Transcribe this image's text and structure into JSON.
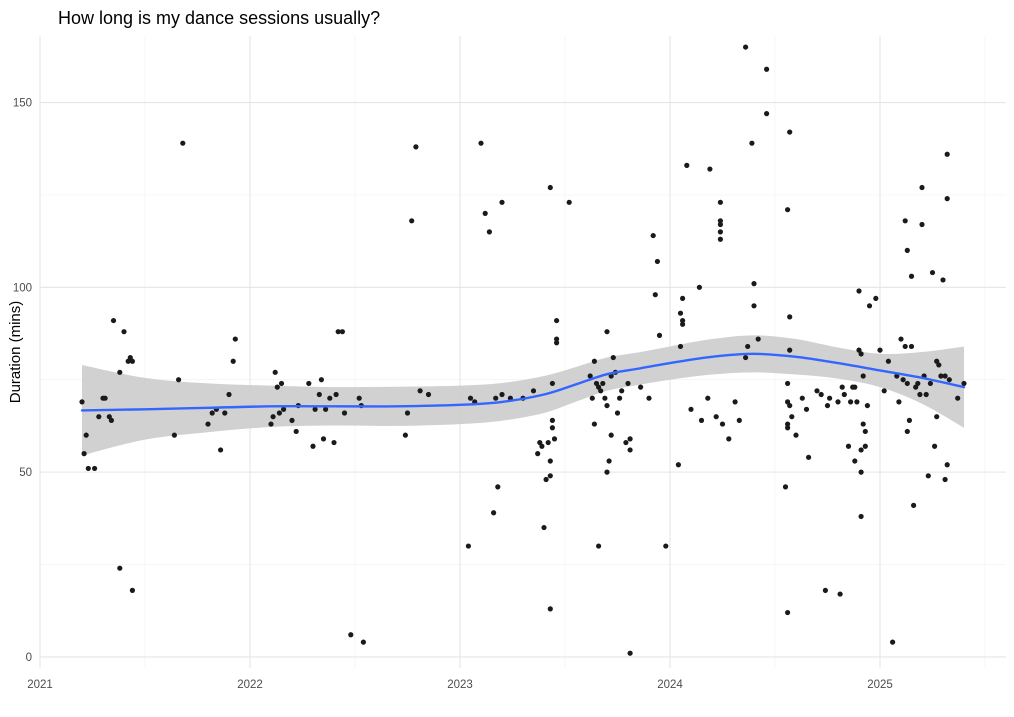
{
  "chart_data": {
    "type": "scatter",
    "title": "How long is my dance sessions usually?",
    "xlabel": "",
    "ylabel": "Duration (mins)",
    "xlim": [
      2021.0,
      2025.6
    ],
    "ylim": [
      -3,
      168
    ],
    "x_ticks": [
      2021,
      2022,
      2023,
      2024,
      2025
    ],
    "x_tick_labels": [
      "2021",
      "2022",
      "2023",
      "2024",
      "2025"
    ],
    "y_ticks": [
      0,
      50,
      100,
      150
    ],
    "y_tick_labels": [
      "0",
      "50",
      "100",
      "150"
    ],
    "grid": true,
    "colors": {
      "points": "#1a1a1a",
      "smooth_line": "#3366ff",
      "ribbon": "#cccccc",
      "grid": "#ebebeb"
    },
    "points": [
      {
        "x": 2021.2,
        "y": 69
      },
      {
        "x": 2021.21,
        "y": 55
      },
      {
        "x": 2021.22,
        "y": 60
      },
      {
        "x": 2021.23,
        "y": 51
      },
      {
        "x": 2021.26,
        "y": 51
      },
      {
        "x": 2021.28,
        "y": 65
      },
      {
        "x": 2021.3,
        "y": 70
      },
      {
        "x": 2021.31,
        "y": 70
      },
      {
        "x": 2021.33,
        "y": 65
      },
      {
        "x": 2021.34,
        "y": 64
      },
      {
        "x": 2021.35,
        "y": 91
      },
      {
        "x": 2021.38,
        "y": 24
      },
      {
        "x": 2021.38,
        "y": 77
      },
      {
        "x": 2021.4,
        "y": 88
      },
      {
        "x": 2021.42,
        "y": 80
      },
      {
        "x": 2021.43,
        "y": 81
      },
      {
        "x": 2021.44,
        "y": 80
      },
      {
        "x": 2021.44,
        "y": 18
      },
      {
        "x": 2021.64,
        "y": 60
      },
      {
        "x": 2021.66,
        "y": 75
      },
      {
        "x": 2021.68,
        "y": 139
      },
      {
        "x": 2021.8,
        "y": 63
      },
      {
        "x": 2021.82,
        "y": 66
      },
      {
        "x": 2021.84,
        "y": 67
      },
      {
        "x": 2021.86,
        "y": 56
      },
      {
        "x": 2021.88,
        "y": 66
      },
      {
        "x": 2021.9,
        "y": 71
      },
      {
        "x": 2021.92,
        "y": 80
      },
      {
        "x": 2021.93,
        "y": 86
      },
      {
        "x": 2022.1,
        "y": 63
      },
      {
        "x": 2022.11,
        "y": 65
      },
      {
        "x": 2022.12,
        "y": 77
      },
      {
        "x": 2022.13,
        "y": 73
      },
      {
        "x": 2022.14,
        "y": 66
      },
      {
        "x": 2022.15,
        "y": 74
      },
      {
        "x": 2022.16,
        "y": 67
      },
      {
        "x": 2022.2,
        "y": 64
      },
      {
        "x": 2022.22,
        "y": 61
      },
      {
        "x": 2022.23,
        "y": 68
      },
      {
        "x": 2022.28,
        "y": 74
      },
      {
        "x": 2022.3,
        "y": 57
      },
      {
        "x": 2022.31,
        "y": 67
      },
      {
        "x": 2022.33,
        "y": 71
      },
      {
        "x": 2022.34,
        "y": 75
      },
      {
        "x": 2022.35,
        "y": 59
      },
      {
        "x": 2022.36,
        "y": 67
      },
      {
        "x": 2022.38,
        "y": 70
      },
      {
        "x": 2022.4,
        "y": 58
      },
      {
        "x": 2022.41,
        "y": 71
      },
      {
        "x": 2022.42,
        "y": 88
      },
      {
        "x": 2022.44,
        "y": 88
      },
      {
        "x": 2022.45,
        "y": 66
      },
      {
        "x": 2022.48,
        "y": 6
      },
      {
        "x": 2022.52,
        "y": 70
      },
      {
        "x": 2022.53,
        "y": 68
      },
      {
        "x": 2022.54,
        "y": 4
      },
      {
        "x": 2022.74,
        "y": 60
      },
      {
        "x": 2022.75,
        "y": 66
      },
      {
        "x": 2022.77,
        "y": 118
      },
      {
        "x": 2022.79,
        "y": 138
      },
      {
        "x": 2022.81,
        "y": 72
      },
      {
        "x": 2022.85,
        "y": 71
      },
      {
        "x": 2023.04,
        "y": 30
      },
      {
        "x": 2023.05,
        "y": 70
      },
      {
        "x": 2023.07,
        "y": 69
      },
      {
        "x": 2023.1,
        "y": 139
      },
      {
        "x": 2023.12,
        "y": 120
      },
      {
        "x": 2023.14,
        "y": 115
      },
      {
        "x": 2023.16,
        "y": 39
      },
      {
        "x": 2023.18,
        "y": 46
      },
      {
        "x": 2023.2,
        "y": 123
      },
      {
        "x": 2023.17,
        "y": 70
      },
      {
        "x": 2023.2,
        "y": 71
      },
      {
        "x": 2023.24,
        "y": 70
      },
      {
        "x": 2023.3,
        "y": 70
      },
      {
        "x": 2023.35,
        "y": 72
      },
      {
        "x": 2023.37,
        "y": 55
      },
      {
        "x": 2023.38,
        "y": 58
      },
      {
        "x": 2023.39,
        "y": 57
      },
      {
        "x": 2023.4,
        "y": 35
      },
      {
        "x": 2023.41,
        "y": 48
      },
      {
        "x": 2023.42,
        "y": 58
      },
      {
        "x": 2023.43,
        "y": 127
      },
      {
        "x": 2023.43,
        "y": 13
      },
      {
        "x": 2023.43,
        "y": 53
      },
      {
        "x": 2023.43,
        "y": 49
      },
      {
        "x": 2023.44,
        "y": 62
      },
      {
        "x": 2023.44,
        "y": 74
      },
      {
        "x": 2023.44,
        "y": 64
      },
      {
        "x": 2023.45,
        "y": 59
      },
      {
        "x": 2023.46,
        "y": 91
      },
      {
        "x": 2023.46,
        "y": 86
      },
      {
        "x": 2023.46,
        "y": 85
      },
      {
        "x": 2023.52,
        "y": 123
      },
      {
        "x": 2023.62,
        "y": 76
      },
      {
        "x": 2023.63,
        "y": 70
      },
      {
        "x": 2023.64,
        "y": 63
      },
      {
        "x": 2023.64,
        "y": 80
      },
      {
        "x": 2023.65,
        "y": 74
      },
      {
        "x": 2023.66,
        "y": 73
      },
      {
        "x": 2023.66,
        "y": 30
      },
      {
        "x": 2023.67,
        "y": 72
      },
      {
        "x": 2023.68,
        "y": 74
      },
      {
        "x": 2023.69,
        "y": 70
      },
      {
        "x": 2023.7,
        "y": 68
      },
      {
        "x": 2023.7,
        "y": 88
      },
      {
        "x": 2023.7,
        "y": 50
      },
      {
        "x": 2023.71,
        "y": 53
      },
      {
        "x": 2023.72,
        "y": 60
      },
      {
        "x": 2023.72,
        "y": 76
      },
      {
        "x": 2023.73,
        "y": 81
      },
      {
        "x": 2023.74,
        "y": 77
      },
      {
        "x": 2023.75,
        "y": 66
      },
      {
        "x": 2023.76,
        "y": 70
      },
      {
        "x": 2023.77,
        "y": 72
      },
      {
        "x": 2023.79,
        "y": 58
      },
      {
        "x": 2023.8,
        "y": 74
      },
      {
        "x": 2023.81,
        "y": 59
      },
      {
        "x": 2023.81,
        "y": 56
      },
      {
        "x": 2023.81,
        "y": 1
      },
      {
        "x": 2023.86,
        "y": 73
      },
      {
        "x": 2023.9,
        "y": 70
      },
      {
        "x": 2023.92,
        "y": 114
      },
      {
        "x": 2023.93,
        "y": 98
      },
      {
        "x": 2023.94,
        "y": 107
      },
      {
        "x": 2023.95,
        "y": 87
      },
      {
        "x": 2023.98,
        "y": 30
      },
      {
        "x": 2024.04,
        "y": 52
      },
      {
        "x": 2024.05,
        "y": 84
      },
      {
        "x": 2024.05,
        "y": 93
      },
      {
        "x": 2024.06,
        "y": 91
      },
      {
        "x": 2024.06,
        "y": 90
      },
      {
        "x": 2024.06,
        "y": 97
      },
      {
        "x": 2024.08,
        "y": 133
      },
      {
        "x": 2024.1,
        "y": 67
      },
      {
        "x": 2024.14,
        "y": 100
      },
      {
        "x": 2024.15,
        "y": 64
      },
      {
        "x": 2024.18,
        "y": 70
      },
      {
        "x": 2024.19,
        "y": 132
      },
      {
        "x": 2024.22,
        "y": 65
      },
      {
        "x": 2024.24,
        "y": 123
      },
      {
        "x": 2024.24,
        "y": 118
      },
      {
        "x": 2024.24,
        "y": 117
      },
      {
        "x": 2024.24,
        "y": 115
      },
      {
        "x": 2024.24,
        "y": 113
      },
      {
        "x": 2024.25,
        "y": 63
      },
      {
        "x": 2024.28,
        "y": 59
      },
      {
        "x": 2024.31,
        "y": 69
      },
      {
        "x": 2024.33,
        "y": 64
      },
      {
        "x": 2024.36,
        "y": 165
      },
      {
        "x": 2024.36,
        "y": 81
      },
      {
        "x": 2024.37,
        "y": 84
      },
      {
        "x": 2024.39,
        "y": 139
      },
      {
        "x": 2024.4,
        "y": 101
      },
      {
        "x": 2024.4,
        "y": 95
      },
      {
        "x": 2024.42,
        "y": 86
      },
      {
        "x": 2024.46,
        "y": 159
      },
      {
        "x": 2024.46,
        "y": 147
      },
      {
        "x": 2024.55,
        "y": 46
      },
      {
        "x": 2024.56,
        "y": 74
      },
      {
        "x": 2024.56,
        "y": 69
      },
      {
        "x": 2024.56,
        "y": 63
      },
      {
        "x": 2024.56,
        "y": 62
      },
      {
        "x": 2024.56,
        "y": 121
      },
      {
        "x": 2024.57,
        "y": 142
      },
      {
        "x": 2024.57,
        "y": 92
      },
      {
        "x": 2024.57,
        "y": 83
      },
      {
        "x": 2024.57,
        "y": 68
      },
      {
        "x": 2024.58,
        "y": 65
      },
      {
        "x": 2024.56,
        "y": 12
      },
      {
        "x": 2024.6,
        "y": 60
      },
      {
        "x": 2024.63,
        "y": 70
      },
      {
        "x": 2024.65,
        "y": 67
      },
      {
        "x": 2024.66,
        "y": 54
      },
      {
        "x": 2024.7,
        "y": 72
      },
      {
        "x": 2024.72,
        "y": 71
      },
      {
        "x": 2024.74,
        "y": 18
      },
      {
        "x": 2024.75,
        "y": 68
      },
      {
        "x": 2024.76,
        "y": 70
      },
      {
        "x": 2024.8,
        "y": 69
      },
      {
        "x": 2024.81,
        "y": 17
      },
      {
        "x": 2024.82,
        "y": 73
      },
      {
        "x": 2024.83,
        "y": 71
      },
      {
        "x": 2024.85,
        "y": 57
      },
      {
        "x": 2024.86,
        "y": 69
      },
      {
        "x": 2024.87,
        "y": 73
      },
      {
        "x": 2024.88,
        "y": 73
      },
      {
        "x": 2024.89,
        "y": 69
      },
      {
        "x": 2024.88,
        "y": 53
      },
      {
        "x": 2024.9,
        "y": 83
      },
      {
        "x": 2024.9,
        "y": 99
      },
      {
        "x": 2024.91,
        "y": 82
      },
      {
        "x": 2024.91,
        "y": 56
      },
      {
        "x": 2024.91,
        "y": 50
      },
      {
        "x": 2024.91,
        "y": 38
      },
      {
        "x": 2024.92,
        "y": 76
      },
      {
        "x": 2024.92,
        "y": 63
      },
      {
        "x": 2024.93,
        "y": 61
      },
      {
        "x": 2024.93,
        "y": 57
      },
      {
        "x": 2024.94,
        "y": 68
      },
      {
        "x": 2024.95,
        "y": 95
      },
      {
        "x": 2024.98,
        "y": 97
      },
      {
        "x": 2025.0,
        "y": 83
      },
      {
        "x": 2025.02,
        "y": 72
      },
      {
        "x": 2025.04,
        "y": 80
      },
      {
        "x": 2025.06,
        "y": 4
      },
      {
        "x": 2025.08,
        "y": 76
      },
      {
        "x": 2025.09,
        "y": 69
      },
      {
        "x": 2025.1,
        "y": 86
      },
      {
        "x": 2025.11,
        "y": 75
      },
      {
        "x": 2025.12,
        "y": 84
      },
      {
        "x": 2025.12,
        "y": 118
      },
      {
        "x": 2025.13,
        "y": 110
      },
      {
        "x": 2025.13,
        "y": 74
      },
      {
        "x": 2025.13,
        "y": 61
      },
      {
        "x": 2025.14,
        "y": 64
      },
      {
        "x": 2025.15,
        "y": 84
      },
      {
        "x": 2025.15,
        "y": 103
      },
      {
        "x": 2025.16,
        "y": 41
      },
      {
        "x": 2025.17,
        "y": 73
      },
      {
        "x": 2025.18,
        "y": 74
      },
      {
        "x": 2025.19,
        "y": 71
      },
      {
        "x": 2025.2,
        "y": 117
      },
      {
        "x": 2025.2,
        "y": 127
      },
      {
        "x": 2025.21,
        "y": 76
      },
      {
        "x": 2025.22,
        "y": 71
      },
      {
        "x": 2025.23,
        "y": 49
      },
      {
        "x": 2025.24,
        "y": 74
      },
      {
        "x": 2025.25,
        "y": 104
      },
      {
        "x": 2025.26,
        "y": 57
      },
      {
        "x": 2025.27,
        "y": 65
      },
      {
        "x": 2025.27,
        "y": 80
      },
      {
        "x": 2025.28,
        "y": 79
      },
      {
        "x": 2025.29,
        "y": 76
      },
      {
        "x": 2025.3,
        "y": 102
      },
      {
        "x": 2025.31,
        "y": 76
      },
      {
        "x": 2025.31,
        "y": 48
      },
      {
        "x": 2025.32,
        "y": 52
      },
      {
        "x": 2025.32,
        "y": 124
      },
      {
        "x": 2025.32,
        "y": 136
      },
      {
        "x": 2025.33,
        "y": 75
      },
      {
        "x": 2025.37,
        "y": 70
      },
      {
        "x": 2025.4,
        "y": 74
      }
    ],
    "smooth": [
      {
        "x": 2021.2,
        "y": 66.7,
        "ymin": 54.5,
        "ymax": 79.0
      },
      {
        "x": 2021.5,
        "y": 67.0,
        "ymin": 58.8,
        "ymax": 75.5
      },
      {
        "x": 2021.8,
        "y": 67.4,
        "ymin": 60.8,
        "ymax": 74.0
      },
      {
        "x": 2022.1,
        "y": 67.8,
        "ymin": 62.2,
        "ymax": 73.4
      },
      {
        "x": 2022.4,
        "y": 67.8,
        "ymin": 62.6,
        "ymax": 73.0
      },
      {
        "x": 2022.7,
        "y": 67.8,
        "ymin": 62.5,
        "ymax": 73.1
      },
      {
        "x": 2023.0,
        "y": 68.2,
        "ymin": 63.0,
        "ymax": 73.4
      },
      {
        "x": 2023.2,
        "y": 69.0,
        "ymin": 63.9,
        "ymax": 74.1
      },
      {
        "x": 2023.4,
        "y": 71.0,
        "ymin": 66.0,
        "ymax": 76.0
      },
      {
        "x": 2023.55,
        "y": 73.7,
        "ymin": 69.0,
        "ymax": 78.4
      },
      {
        "x": 2023.7,
        "y": 76.5,
        "ymin": 72.0,
        "ymax": 81.0
      },
      {
        "x": 2023.85,
        "y": 78.0,
        "ymin": 73.6,
        "ymax": 82.4
      },
      {
        "x": 2024.0,
        "y": 79.5,
        "ymin": 75.0,
        "ymax": 84.0
      },
      {
        "x": 2024.2,
        "y": 81.2,
        "ymin": 76.4,
        "ymax": 86.0
      },
      {
        "x": 2024.4,
        "y": 82.0,
        "ymin": 77.0,
        "ymax": 87.0
      },
      {
        "x": 2024.6,
        "y": 81.2,
        "ymin": 76.4,
        "ymax": 86.0
      },
      {
        "x": 2024.8,
        "y": 79.5,
        "ymin": 75.3,
        "ymax": 83.7
      },
      {
        "x": 2025.0,
        "y": 77.5,
        "ymin": 73.0,
        "ymax": 82.0
      },
      {
        "x": 2025.2,
        "y": 75.5,
        "ymin": 68.5,
        "ymax": 82.5
      },
      {
        "x": 2025.4,
        "y": 73.0,
        "ymin": 62.0,
        "ymax": 84.0
      }
    ]
  }
}
